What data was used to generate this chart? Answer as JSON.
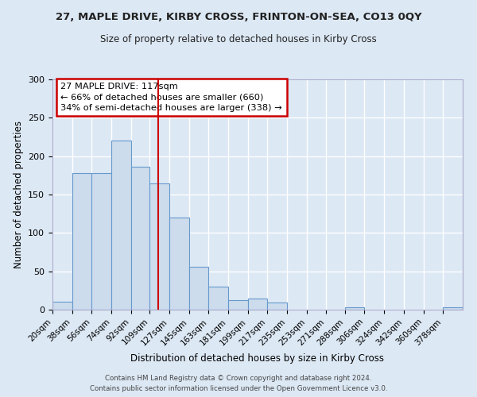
{
  "title": "27, MAPLE DRIVE, KIRBY CROSS, FRINTON-ON-SEA, CO13 0QY",
  "subtitle": "Size of property relative to detached houses in Kirby Cross",
  "xlabel": "Distribution of detached houses by size in Kirby Cross",
  "ylabel": "Number of detached properties",
  "bin_labels": [
    "20sqm",
    "38sqm",
    "56sqm",
    "74sqm",
    "92sqm",
    "109sqm",
    "127sqm",
    "145sqm",
    "163sqm",
    "181sqm",
    "199sqm",
    "217sqm",
    "235sqm",
    "253sqm",
    "271sqm",
    "288sqm",
    "306sqm",
    "324sqm",
    "342sqm",
    "360sqm",
    "378sqm"
  ],
  "bar_heights": [
    10,
    178,
    178,
    220,
    186,
    165,
    120,
    56,
    30,
    12,
    14,
    9,
    0,
    0,
    0,
    3,
    0,
    0,
    0,
    0,
    3
  ],
  "bar_color": "#ccdcec",
  "bar_edge_color": "#6699cc",
  "vline_x": 117,
  "vline_color": "#cc0000",
  "ylim": [
    0,
    300
  ],
  "yticks": [
    0,
    50,
    100,
    150,
    200,
    250,
    300
  ],
  "annotation_title": "27 MAPLE DRIVE: 117sqm",
  "annotation_line1": "← 66% of detached houses are smaller (660)",
  "annotation_line2": "34% of semi-detached houses are larger (338) →",
  "annotation_box_color": "#cc0000",
  "footer1": "Contains HM Land Registry data © Crown copyright and database right 2024.",
  "footer2": "Contains public sector information licensed under the Open Government Licence v3.0.",
  "bg_color": "#dce8f4",
  "plot_bg_color": "#dce8f4",
  "grid_color": "#ffffff",
  "bin_edges": [
    20,
    38,
    56,
    74,
    92,
    109,
    127,
    145,
    163,
    181,
    199,
    217,
    235,
    253,
    271,
    288,
    306,
    324,
    342,
    360,
    378,
    396
  ]
}
